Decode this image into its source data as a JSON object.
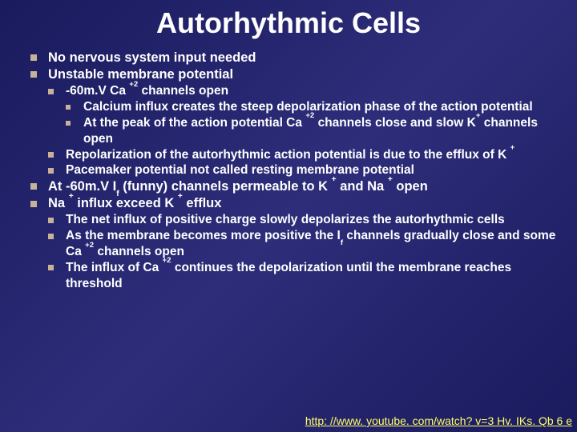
{
  "title": {
    "text": "Autorhythmic Cells",
    "fontsize": 36,
    "color": "#ffffff"
  },
  "body_fontsize": 16.5,
  "sub_fontsize": 15.5,
  "subsub_fontsize": 15.5,
  "bullet_color": "#c7b299",
  "background_gradient": [
    "#1a1a5e",
    "#2d2d7a",
    "#1a1a5e"
  ],
  "bullets": {
    "b1": "No nervous system input needed",
    "b2": "Unstable membrane potential",
    "b2_1_pre": "-60m.V Ca ",
    "b2_1_sup": "+2",
    "b2_1_post": " channels open",
    "b2_1_1": "Calcium influx creates the steep depolarization phase of the action potential",
    "b2_1_2_pre": "At the peak of the action potential Ca ",
    "b2_1_2_sup": "+2",
    "b2_1_2_mid": " channels close and slow K",
    "b2_1_2_sup2": "+",
    "b2_1_2_post": " channels open",
    "b2_2_pre": "Repolarization of the autorhythmic action potential is due to the efflux of  K ",
    "b2_2_sup": "+",
    "b2_3": "Pacemaker potential not called resting membrane potential",
    "b3_pre": "At -60m.V I",
    "b3_sub": "f",
    "b3_mid": " (funny) channels  permeable to K ",
    "b3_sup": "+",
    "b3_mid2": " and Na ",
    "b3_sup2": "+",
    "b3_post": " open",
    "b4_pre": "Na ",
    "b4_sup": "+",
    "b4_mid": " influx exceed K ",
    "b4_sup2": "+",
    "b4_post": " efflux",
    "b4_1": "The net influx of positive charge slowly depolarizes the autorhythmic cells",
    "b4_2_pre": "As the membrane becomes more positive the I",
    "b4_2_sub": "f",
    "b4_2_mid": " channels gradually close and some Ca ",
    "b4_2_sup": "+2",
    "b4_2_post": " channels open",
    "b4_3_pre": "The influx of Ca ",
    "b4_3_sup": "+2",
    "b4_3_post": " continues the depolarization until the membrane reaches threshold"
  },
  "link": {
    "text": "http: //www. youtube. com/watch? v=3 Hv. IKs. Qb 6 e",
    "color": "#ffff66"
  }
}
